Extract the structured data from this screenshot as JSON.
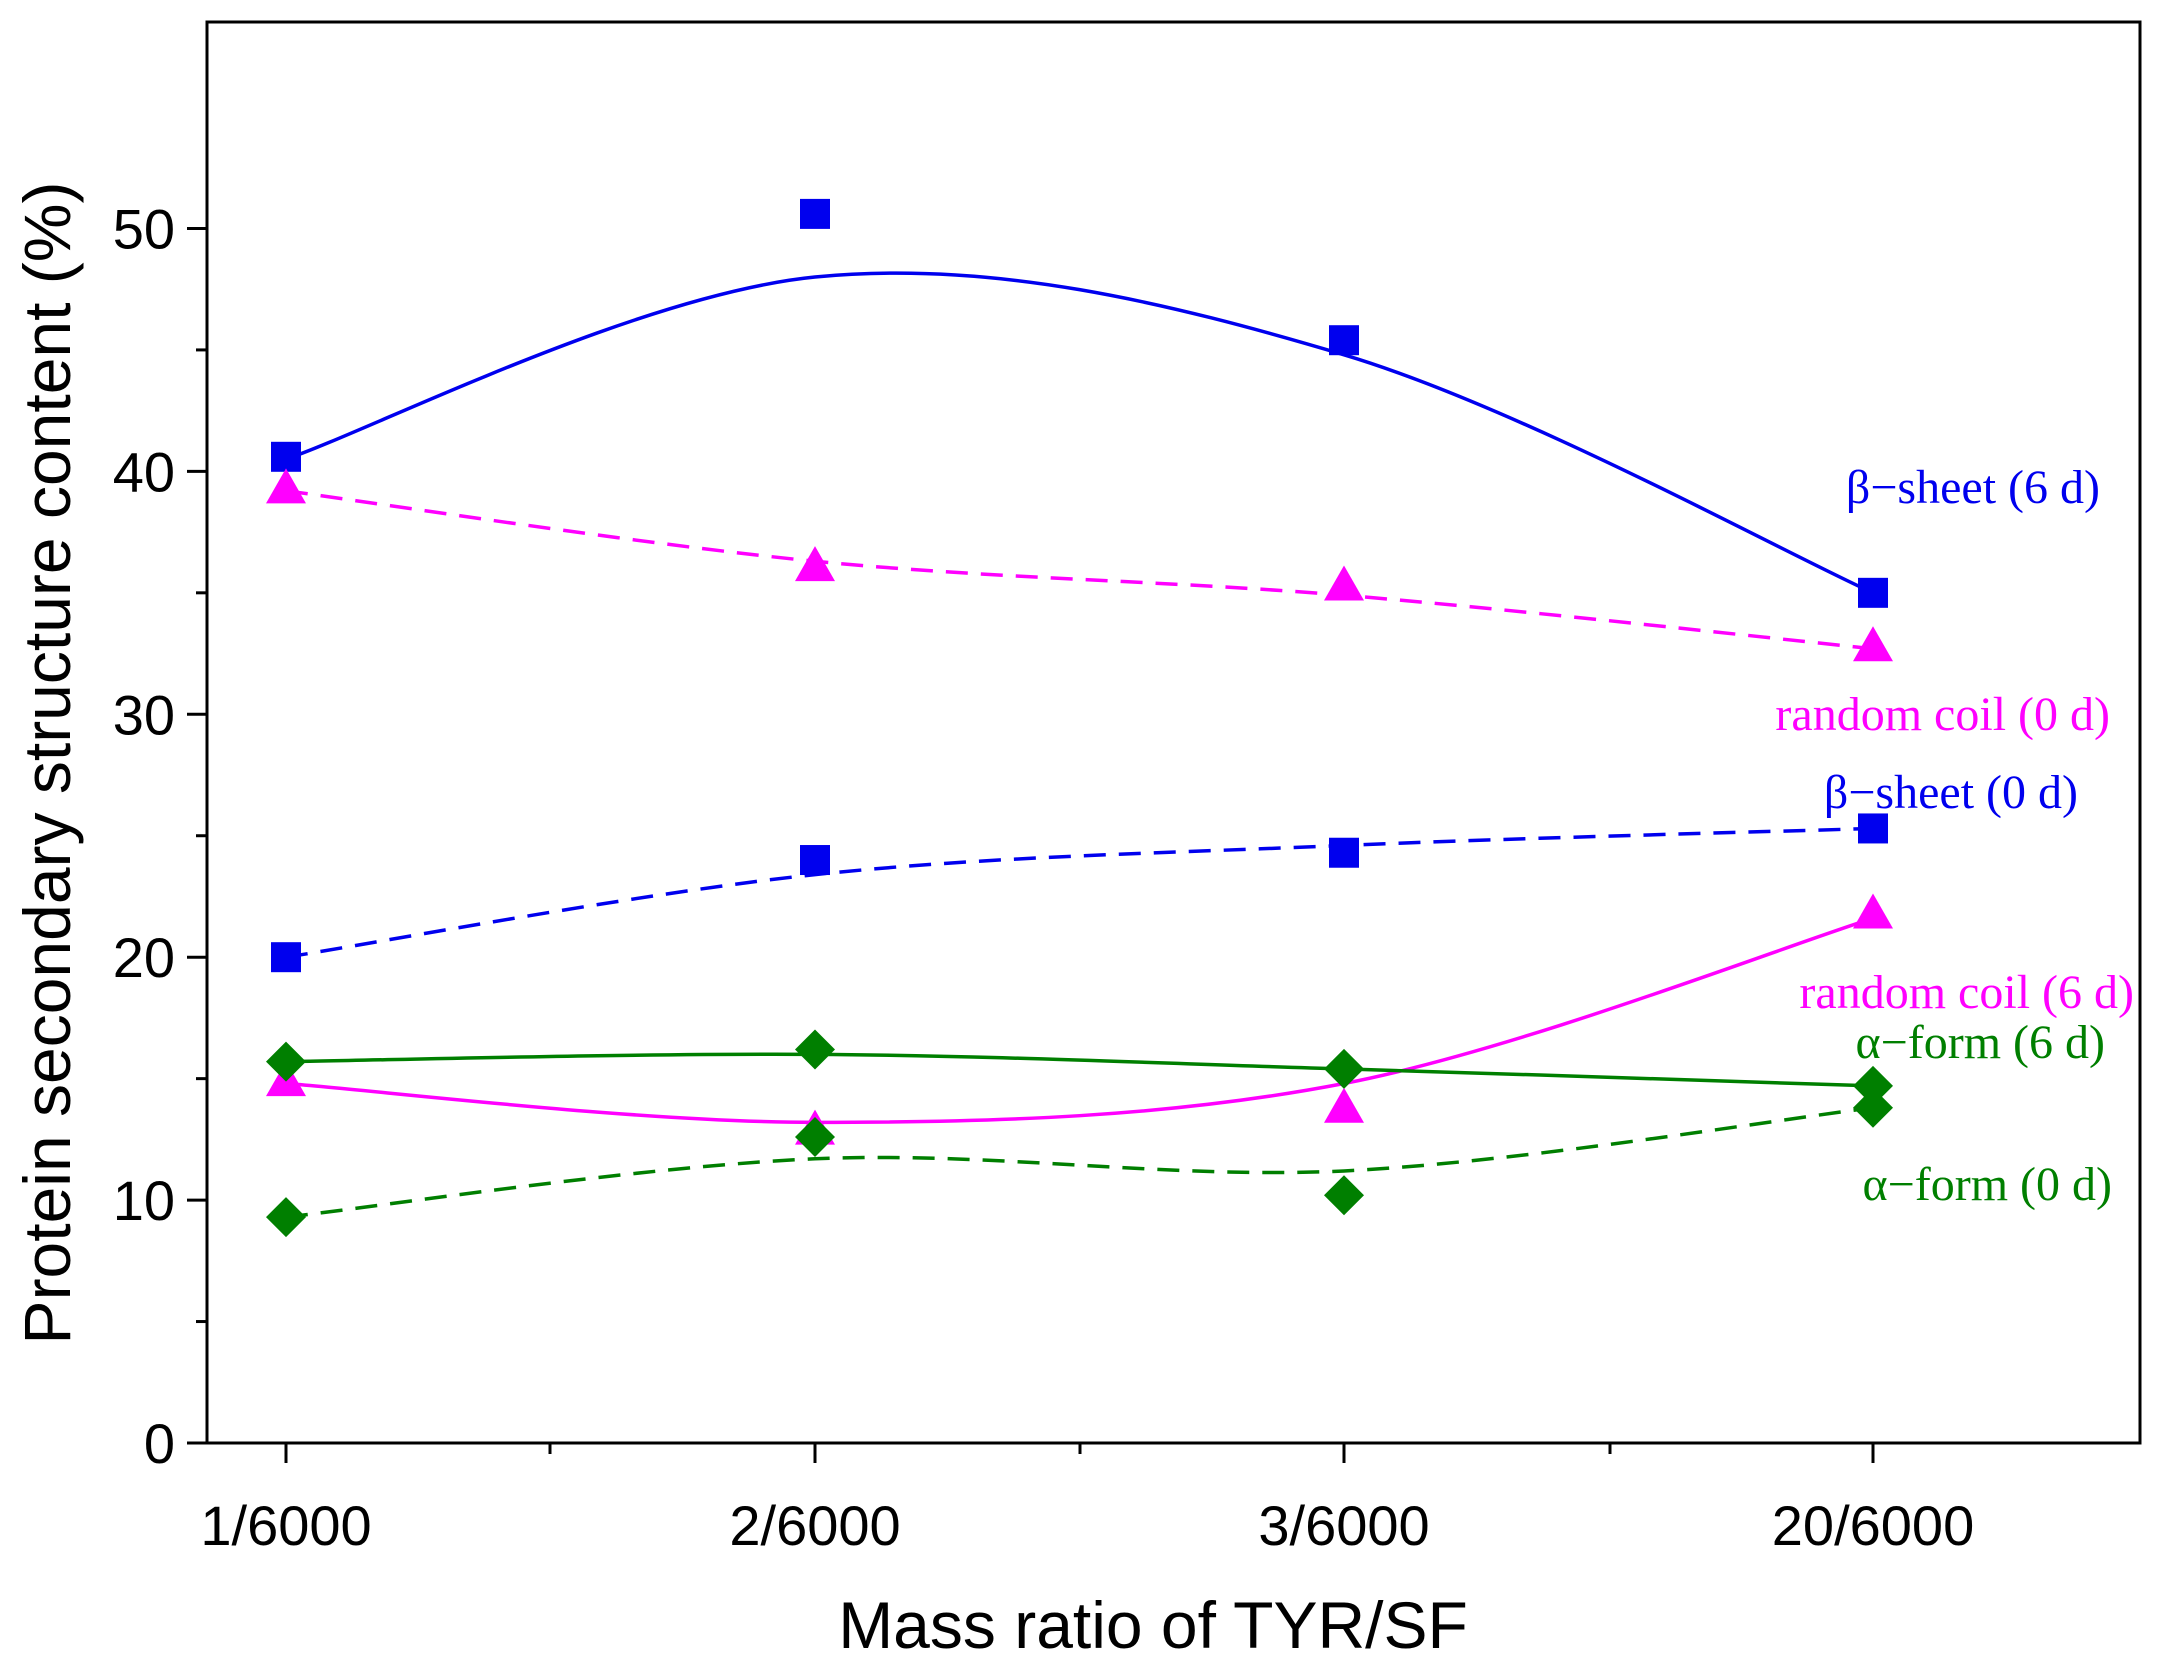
{
  "chart_data": {
    "type": "scatter",
    "xlabel": "Mass ratio of TYR/SF",
    "ylabel": "Protein secondary structure content (%)",
    "categories": [
      "1/6000",
      "2/6000",
      "3/6000",
      "20/6000"
    ],
    "yticks": [
      0,
      10,
      20,
      30,
      40,
      50
    ],
    "ylim": [
      0,
      58.5
    ],
    "grid": false,
    "legend": "none",
    "series": [
      {
        "name": "β−sheet (6 d)",
        "marker": "square",
        "line": "solid",
        "color": "#0000EE",
        "values": [
          40.6,
          50.6,
          45.4,
          35.0
        ],
        "fit": [
          40.5,
          48.0,
          44.8,
          35.0
        ]
      },
      {
        "name": "random coil (0 d)",
        "marker": "triangle",
        "line": "dashed",
        "color": "#FF00FF",
        "values": [
          39.3,
          36.1,
          35.3,
          32.8
        ],
        "fit": [
          39.2,
          36.3,
          34.9,
          32.7
        ]
      },
      {
        "name": "β−sheet (0 d)",
        "marker": "square",
        "line": "dashed",
        "color": "#0000EE",
        "values": [
          20.0,
          24.0,
          24.3,
          25.3
        ],
        "fit": [
          20.0,
          23.4,
          24.6,
          25.3
        ]
      },
      {
        "name": "random coil (6 d)",
        "marker": "triangle",
        "line": "solid",
        "color": "#FF00FF",
        "values": [
          14.9,
          12.9,
          13.8,
          21.8
        ],
        "fit": [
          14.8,
          13.2,
          14.8,
          21.6
        ]
      },
      {
        "name": "α−form (6 d)",
        "marker": "diamond",
        "line": "solid",
        "color": "#007F00",
        "values": [
          15.7,
          16.2,
          15.4,
          14.7
        ],
        "fit": [
          15.7,
          16.0,
          15.4,
          14.7
        ]
      },
      {
        "name": "α−form (0 d)",
        "marker": "diamond",
        "line": "dashed",
        "color": "#007F00",
        "values": [
          9.3,
          12.6,
          10.2,
          13.8
        ],
        "fit": [
          9.3,
          11.7,
          11.2,
          13.8
        ]
      }
    ]
  }
}
